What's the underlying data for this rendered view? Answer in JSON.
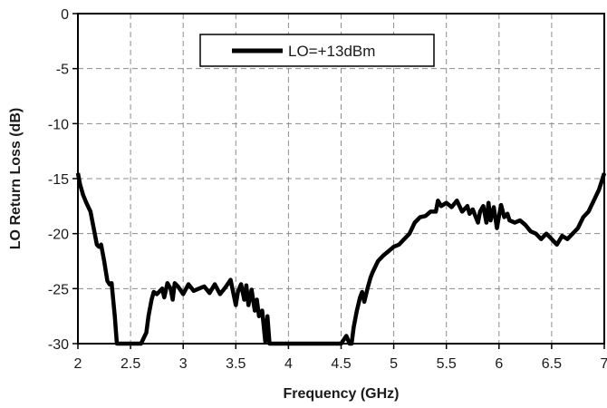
{
  "chart_data": {
    "type": "line",
    "title": "",
    "xlabel": "Frequency (GHz)",
    "ylabel": "LO Return Loss (dB)",
    "xlim": [
      2,
      7
    ],
    "ylim": [
      -30,
      0
    ],
    "x_ticks": [
      2,
      2.5,
      3,
      3.5,
      4,
      4.5,
      5,
      5.5,
      6,
      6.5,
      7
    ],
    "x_tick_labels": [
      "2",
      "2.5",
      "3",
      "3.5",
      "4",
      "4.5",
      "5",
      "5.5",
      "6",
      "6.5",
      "7"
    ],
    "y_ticks": [
      0,
      -5,
      -10,
      -15,
      -20,
      -25,
      -30
    ],
    "y_tick_labels": [
      "0",
      "-5",
      "-10",
      "-15",
      "-20",
      "-25",
      "-30"
    ],
    "grid": true,
    "legend_position": "top-center",
    "colors": {
      "series": "#000000",
      "grid": "#8c8c8c",
      "frame": "#000000"
    },
    "series": [
      {
        "name": "LO=+13dBm",
        "x": [
          2.0,
          2.02,
          2.05,
          2.08,
          2.12,
          2.15,
          2.18,
          2.2,
          2.22,
          2.25,
          2.28,
          2.3,
          2.32,
          2.35,
          2.37,
          2.4,
          2.42,
          2.45,
          2.47,
          2.5,
          2.55,
          2.6,
          2.65,
          2.67,
          2.7,
          2.72,
          2.75,
          2.8,
          2.82,
          2.85,
          2.88,
          2.9,
          2.92,
          2.95,
          3.0,
          3.05,
          3.1,
          3.15,
          3.2,
          3.25,
          3.3,
          3.35,
          3.4,
          3.45,
          3.5,
          3.52,
          3.55,
          3.58,
          3.6,
          3.62,
          3.65,
          3.68,
          3.7,
          3.72,
          3.75,
          3.78,
          3.8,
          3.82,
          3.85,
          3.9,
          4.0,
          4.1,
          4.2,
          4.3,
          4.4,
          4.5,
          4.55,
          4.58,
          4.6,
          4.62,
          4.65,
          4.68,
          4.7,
          4.72,
          4.75,
          4.78,
          4.8,
          4.85,
          4.9,
          4.95,
          5.0,
          5.05,
          5.1,
          5.15,
          5.2,
          5.25,
          5.3,
          5.35,
          5.4,
          5.42,
          5.45,
          5.5,
          5.55,
          5.6,
          5.65,
          5.7,
          5.72,
          5.75,
          5.8,
          5.82,
          5.85,
          5.88,
          5.9,
          5.92,
          5.95,
          5.98,
          6.0,
          6.02,
          6.05,
          6.08,
          6.1,
          6.15,
          6.2,
          6.25,
          6.3,
          6.35,
          6.4,
          6.45,
          6.5,
          6.55,
          6.6,
          6.65,
          6.7,
          6.75,
          6.8,
          6.85,
          6.9,
          6.95,
          7.0
        ],
        "y": [
          -14.5,
          -15.5,
          -16.5,
          -17.2,
          -18.0,
          -19.5,
          -21.0,
          -21.2,
          -21.0,
          -22.5,
          -24.3,
          -24.6,
          -24.5,
          -27.5,
          -30.0,
          -30.0,
          -30.0,
          -30.0,
          -30.0,
          -30.0,
          -30.0,
          -30.0,
          -29.0,
          -27.5,
          -26.0,
          -25.3,
          -25.5,
          -25.0,
          -25.8,
          -24.5,
          -25.0,
          -26.0,
          -24.5,
          -24.8,
          -25.5,
          -24.6,
          -25.2,
          -25.0,
          -24.8,
          -25.4,
          -24.6,
          -25.5,
          -24.9,
          -24.2,
          -26.5,
          -25.3,
          -24.6,
          -26.0,
          -24.7,
          -26.5,
          -25.1,
          -27.0,
          -26.0,
          -27.5,
          -27.0,
          -29.8,
          -27.5,
          -30.0,
          -30.0,
          -30.0,
          -30.0,
          -30.0,
          -30.0,
          -30.0,
          -30.0,
          -30.0,
          -29.3,
          -30.0,
          -30.0,
          -28.5,
          -27.0,
          -25.8,
          -25.3,
          -26.2,
          -25.0,
          -24.0,
          -23.5,
          -22.5,
          -22.0,
          -21.6,
          -21.2,
          -21.0,
          -20.5,
          -20.0,
          -19.0,
          -18.5,
          -18.4,
          -18.0,
          -18.0,
          -17.0,
          -17.5,
          -17.2,
          -17.6,
          -17.0,
          -18.0,
          -17.5,
          -18.2,
          -17.8,
          -19.0,
          -18.0,
          -17.5,
          -19.0,
          -17.2,
          -18.8,
          -17.6,
          -19.5,
          -18.4,
          -17.4,
          -18.5,
          -18.2,
          -18.8,
          -19.0,
          -18.8,
          -19.2,
          -19.8,
          -20.0,
          -20.5,
          -20.0,
          -20.5,
          -21.0,
          -20.2,
          -20.5,
          -20.0,
          -19.5,
          -18.5,
          -18.0,
          -17.0,
          -16.0,
          -14.5
        ]
      }
    ]
  }
}
